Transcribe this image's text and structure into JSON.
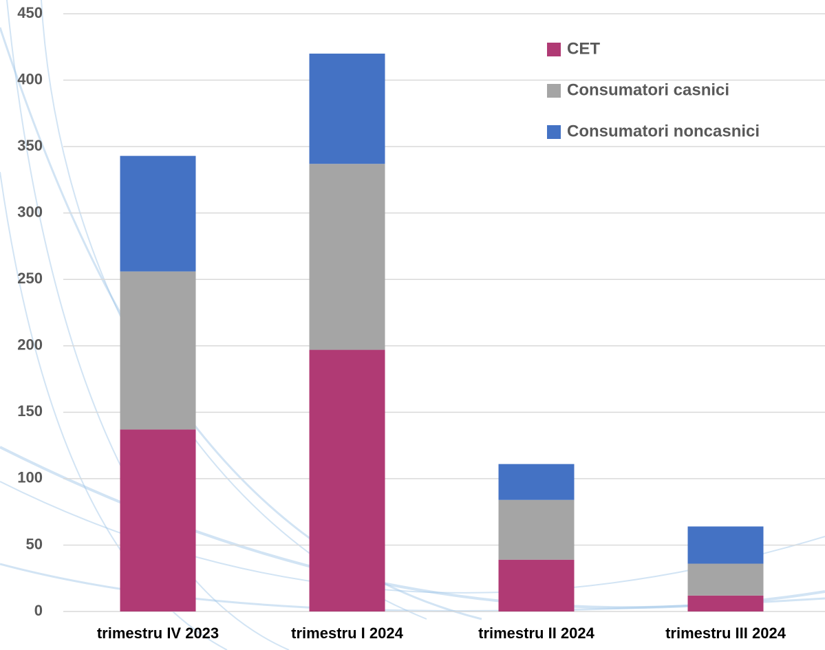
{
  "chart_data": {
    "type": "stacked_bar",
    "categories": [
      "trimestru IV 2023",
      "trimestru I 2024",
      "trimestru II 2024",
      "trimestru III 2024"
    ],
    "series": [
      {
        "name": "CET",
        "color": "#b03a74",
        "values": [
          137,
          197,
          39,
          12
        ]
      },
      {
        "name": "Consumatori casnici",
        "color": "#a5a5a5",
        "values": [
          119,
          140,
          45,
          24
        ]
      },
      {
        "name": "Consumatori noncasnici",
        "color": "#4472c4",
        "values": [
          87,
          83,
          27,
          28
        ]
      }
    ],
    "ylim": [
      0,
      450
    ],
    "yticks": [
      0,
      50,
      100,
      150,
      200,
      250,
      300,
      350,
      400,
      450
    ],
    "grid": true,
    "legend": "top-right"
  }
}
